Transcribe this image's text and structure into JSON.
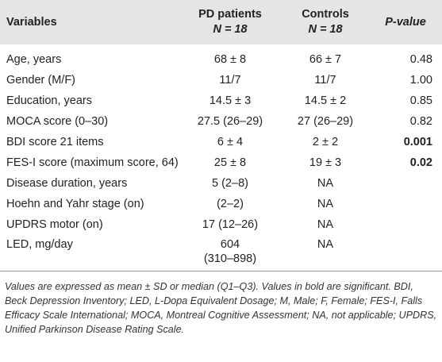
{
  "table": {
    "header": [
      [
        "Variables"
      ],
      [
        "PD patients",
        "N = 18"
      ],
      [
        "Controls",
        "N = 18"
      ],
      [
        "P-value"
      ]
    ],
    "rows": [
      {
        "cells": [
          "Age, years",
          [
            "68 ± 8"
          ],
          "66 ± 7",
          "0.48"
        ]
      },
      {
        "cells": [
          "Gender (M/F)",
          [
            "11/7"
          ],
          "11/7",
          "1.00"
        ]
      },
      {
        "cells": [
          "Education, years",
          [
            "14.5 ± 3"
          ],
          "14.5 ± 2",
          "0.85"
        ]
      },
      {
        "cells": [
          "MOCA score (0–30)",
          [
            "27.5 (26–29)"
          ],
          "27 (26–29)",
          "0.82"
        ]
      },
      {
        "cells": [
          "BDI score 21 items",
          [
            "6 ± 4"
          ],
          "2 ± 2",
          "0.001"
        ],
        "significant": true
      },
      {
        "cells": [
          "FES-I score (maximum score, 64)",
          [
            "25 ± 8"
          ],
          "19 ± 3",
          "0.02"
        ],
        "significant": true
      },
      {
        "cells": [
          "Disease duration, years",
          [
            "5 (2–8)"
          ],
          "NA",
          ""
        ]
      },
      {
        "cells": [
          "Hoehn and Yahr stage (on)",
          [
            "(2–2)"
          ],
          "NA",
          ""
        ]
      },
      {
        "cells": [
          "UPDRS motor (on)",
          [
            "17 (12–26)"
          ],
          "NA",
          ""
        ]
      },
      {
        "cells": [
          "LED, mg/day",
          [
            "604",
            "(310–898)"
          ],
          "NA",
          ""
        ]
      }
    ],
    "footnote": "Values are expressed as mean ± SD or median (Q1–Q3). Values in bold are significant. BDI, Beck Depression Inventory; LED, L-Dopa Equivalent Dosage; M, Male; F, Female; FES-I, Falls Efficacy Scale International; MOCA, Montreal Cognitive Assessment; NA, not applicable; UPDRS, Unified Parkinson Disease Rating Scale."
  }
}
